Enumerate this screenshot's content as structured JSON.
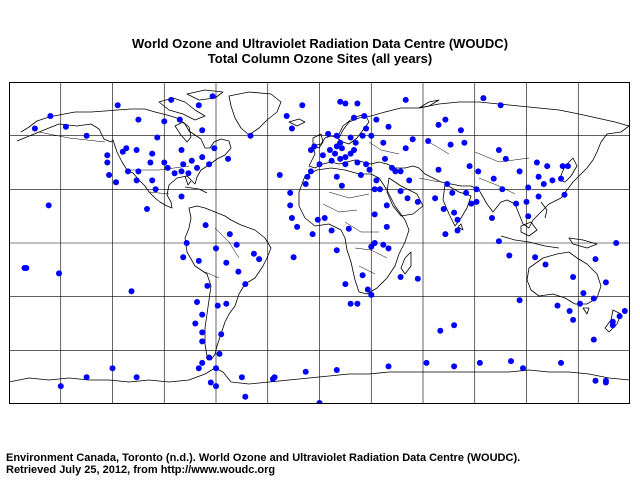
{
  "header": {
    "title": "World Ozone and Ultraviolet Radiation Data Centre (WOUDC)",
    "subtitle": "Total Column Ozone Sites (all years)"
  },
  "map": {
    "projection": "equirectangular",
    "graticule": true,
    "site_color": "#0000ff",
    "sites_lonlat": [
      [
        -147,
        65
      ],
      [
        -156,
        71
      ],
      [
        -165,
        64
      ],
      [
        -135,
        60
      ],
      [
        -123,
        49
      ],
      [
        -114,
        51
      ],
      [
        -112,
        53
      ],
      [
        -106,
        52
      ],
      [
        -97,
        50
      ],
      [
        -123,
        45
      ],
      [
        -122,
        38
      ],
      [
        -118,
        34
      ],
      [
        -111,
        40
      ],
      [
        -106,
        35
      ],
      [
        -105,
        40
      ],
      [
        -97,
        35
      ],
      [
        -95,
        30
      ],
      [
        -98,
        45
      ],
      [
        -90,
        45
      ],
      [
        -88,
        42
      ],
      [
        -84,
        39
      ],
      [
        -80,
        40
      ],
      [
        -76,
        39
      ],
      [
        -79,
        44
      ],
      [
        -74,
        46
      ],
      [
        -71,
        42
      ],
      [
        -64,
        44
      ],
      [
        -80,
        26
      ],
      [
        -68,
        48
      ],
      [
        -80,
        52
      ],
      [
        -94,
        59
      ],
      [
        -62,
        82
      ],
      [
        -86,
        80
      ],
      [
        -105,
        69
      ],
      [
        -117,
        77
      ],
      [
        -81,
        69
      ],
      [
        -68,
        63
      ],
      [
        -61,
        53
      ],
      [
        -53,
        47
      ],
      [
        -90,
        68
      ],
      [
        -157,
        21
      ],
      [
        -170,
        -14
      ],
      [
        -151,
        -17
      ],
      [
        -109,
        -27
      ],
      [
        -100,
        19
      ],
      [
        -77,
        0
      ],
      [
        -66,
        10
      ],
      [
        -48,
        -1
      ],
      [
        -38,
        -6
      ],
      [
        -57,
        -51
      ],
      [
        -43,
        -23
      ],
      [
        -54,
        -34
      ],
      [
        -59,
        -35
      ],
      [
        -65,
        -24
      ],
      [
        -71,
        -33
      ],
      [
        -68,
        -40
      ],
      [
        -72,
        -45
      ],
      [
        -68,
        -55
      ],
      [
        -68,
        -50
      ],
      [
        -64,
        -64
      ],
      [
        -58,
        -62
      ],
      [
        -70,
        -70
      ],
      [
        -60,
        -70
      ],
      [
        -45,
        -75
      ],
      [
        -27,
        -76
      ],
      [
        -43,
        -86
      ],
      [
        -23,
        38
      ],
      [
        -17,
        28
      ],
      [
        -16,
        64
      ],
      [
        -8,
        33
      ],
      [
        -7,
        37
      ],
      [
        -5,
        40
      ],
      [
        0,
        44
      ],
      [
        2,
        49
      ],
      [
        -3,
        54
      ],
      [
        -5,
        52
      ],
      [
        6,
        52
      ],
      [
        9,
        50
      ],
      [
        10,
        54
      ],
      [
        13,
        53
      ],
      [
        7,
        46
      ],
      [
        12,
        47
      ],
      [
        15,
        48
      ],
      [
        18,
        50
      ],
      [
        20,
        52
      ],
      [
        21,
        56
      ],
      [
        25,
        60
      ],
      [
        27,
        64
      ],
      [
        18,
        59
      ],
      [
        10,
        60
      ],
      [
        5,
        61
      ],
      [
        12,
        56
      ],
      [
        15,
        44
      ],
      [
        22,
        45
      ],
      [
        27,
        44
      ],
      [
        24,
        38
      ],
      [
        33,
        35
      ],
      [
        29,
        41
      ],
      [
        37,
        56
      ],
      [
        30,
        60
      ],
      [
        40,
        65
      ],
      [
        50,
        53
      ],
      [
        54,
        58
      ],
      [
        63,
        57
      ],
      [
        76,
        55
      ],
      [
        84,
        56
      ],
      [
        82,
        63
      ],
      [
        69,
        66
      ],
      [
        73,
        69
      ],
      [
        33,
        69
      ],
      [
        20,
        70
      ],
      [
        26,
        71
      ],
      [
        15,
        78
      ],
      [
        12,
        79
      ],
      [
        22,
        78
      ],
      [
        -19,
        71
      ],
      [
        -70,
        77
      ],
      [
        -40,
        60
      ],
      [
        -10,
        77
      ],
      [
        50,
        80
      ],
      [
        95,
        81
      ],
      [
        105,
        77
      ],
      [
        42,
        42
      ],
      [
        44,
        40
      ],
      [
        38,
        47
      ],
      [
        47,
        40
      ],
      [
        69,
        41
      ],
      [
        52,
        35
      ],
      [
        51,
        25
      ],
      [
        47,
        29
      ],
      [
        35,
        30
      ],
      [
        32,
        30
      ],
      [
        39,
        21
      ],
      [
        57,
        23
      ],
      [
        67,
        25
      ],
      [
        74,
        33
      ],
      [
        77,
        28
      ],
      [
        78,
        17
      ],
      [
        80,
        13
      ],
      [
        88,
        22
      ],
      [
        72,
        19
      ],
      [
        85,
        28
      ],
      [
        91,
        23
      ],
      [
        80,
        7
      ],
      [
        73,
        5
      ],
      [
        100,
        14
      ],
      [
        104,
        1
      ],
      [
        106,
        30
      ],
      [
        116,
        40
      ],
      [
        126,
        45
      ],
      [
        114,
        22
      ],
      [
        121,
        31
      ],
      [
        120,
        23
      ],
      [
        127,
        37
      ],
      [
        130,
        33
      ],
      [
        135,
        35
      ],
      [
        140,
        36
      ],
      [
        141,
        43
      ],
      [
        144,
        43
      ],
      [
        127,
        26
      ],
      [
        142,
        27
      ],
      [
        132,
        43
      ],
      [
        104,
        52
      ],
      [
        108,
        47
      ],
      [
        87,
        43
      ],
      [
        92,
        40
      ],
      [
        101,
        36
      ],
      [
        91,
        30
      ],
      [
        121,
        15
      ],
      [
        110,
        -7
      ],
      [
        125,
        -8
      ],
      [
        116,
        -32
      ],
      [
        131,
        -12
      ],
      [
        147,
        -19
      ],
      [
        138,
        -35
      ],
      [
        145,
        -38
      ],
      [
        147,
        -43
      ],
      [
        151,
        -34
      ],
      [
        153,
        -28
      ],
      [
        159,
        -31
      ],
      [
        174,
        -41
      ],
      [
        170,
        -46
      ],
      [
        170,
        -44
      ],
      [
        177,
        -38
      ],
      [
        159,
        -54
      ],
      [
        160,
        -9
      ],
      [
        166,
        -22
      ],
      [
        172,
        0
      ],
      [
        -171,
        -14
      ],
      [
        78,
        -46
      ],
      [
        70,
        -49
      ],
      [
        57,
        -20
      ],
      [
        47,
        -19
      ],
      [
        40,
        -3
      ],
      [
        37,
        -1
      ],
      [
        39,
        9
      ],
      [
        32,
        16
      ],
      [
        25,
        -18
      ],
      [
        28,
        -26
      ],
      [
        18,
        -34
      ],
      [
        22,
        -34
      ],
      [
        30,
        -29
      ],
      [
        15,
        -23
      ],
      [
        32,
        0
      ],
      [
        10,
        -4
      ],
      [
        7,
        7
      ],
      [
        3,
        14
      ],
      [
        -1,
        13
      ],
      [
        -16,
        14
      ],
      [
        -17,
        21
      ],
      [
        -13,
        9
      ],
      [
        -4,
        5
      ],
      [
        13,
        32
      ],
      [
        10,
        37
      ],
      [
        30,
        -2
      ],
      [
        17,
        8
      ],
      [
        -15,
        -8
      ],
      [
        -70,
        -10
      ],
      [
        -35,
        -9
      ],
      [
        -60,
        -3
      ],
      [
        -47,
        -16
      ],
      [
        -54,
        -11
      ],
      [
        -79,
        -8
      ],
      [
        -52,
        5
      ],
      [
        -60,
        -80
      ],
      [
        111,
        -66
      ],
      [
        140,
        -67
      ],
      [
        166,
        -78
      ],
      [
        78,
        -69
      ],
      [
        40,
        -69
      ],
      [
        10,
        -71
      ],
      [
        -26,
        -75
      ],
      [
        -68,
        -67
      ],
      [
        -63,
        -78
      ],
      [
        -106,
        -75
      ],
      [
        -120,
        -70
      ],
      [
        -135,
        -75
      ],
      [
        -150,
        -80
      ],
      [
        0,
        -90
      ],
      [
        160,
        -77
      ],
      [
        62,
        -67
      ],
      [
        93,
        -67
      ],
      [
        118,
        -70
      ],
      [
        -8,
        -72
      ],
      [
        166,
        -77
      ]
    ]
  },
  "footer": {
    "line1": "Environment Canada, Toronto (n.d.). World Ozone and Ultraviolet Radiation Data Centre (WOUDC).",
    "line2": "Retrieved July 25, 2012, from http://www.woudc.org"
  }
}
